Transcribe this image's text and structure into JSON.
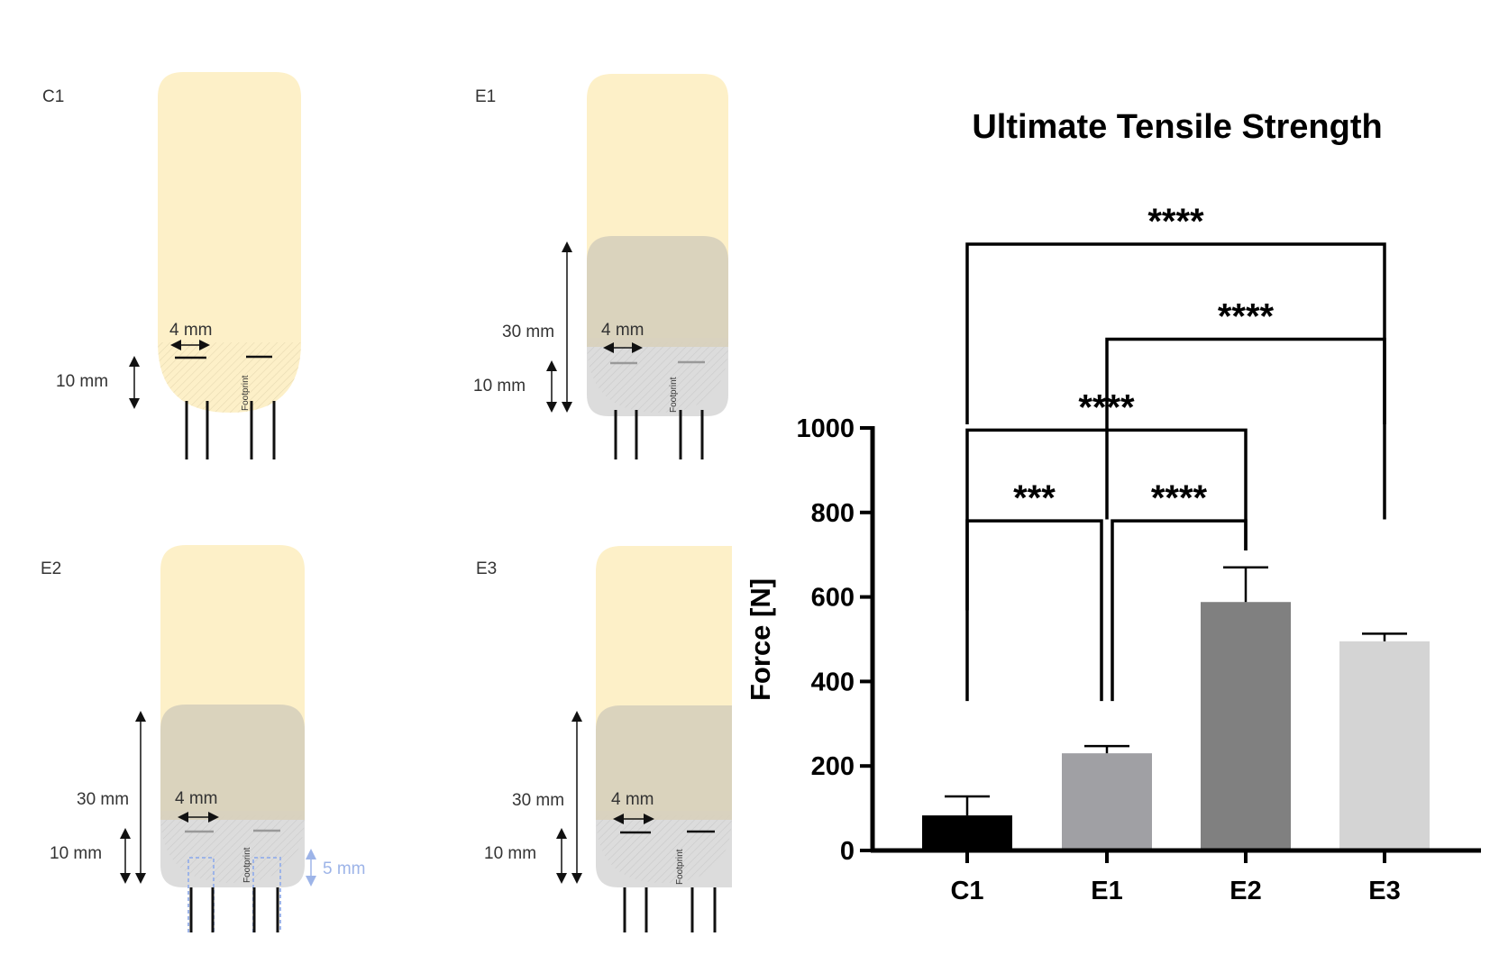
{
  "diagrams": [
    {
      "id": "c1",
      "label": "C1",
      "width_label": "4 mm",
      "dim1_label": "10 mm",
      "dim2_label": "",
      "footprint_label": "Footprint",
      "extra_label": ""
    },
    {
      "id": "e1",
      "label": "E1",
      "width_label": "4 mm",
      "dim1_label": "10 mm",
      "dim2_label": "30 mm",
      "footprint_label": "Footprint",
      "extra_label": ""
    },
    {
      "id": "e2",
      "label": "E2",
      "width_label": "4 mm",
      "dim1_label": "10 mm",
      "dim2_label": "30 mm",
      "footprint_label": "Footprint",
      "extra_label": "5 mm"
    },
    {
      "id": "e3",
      "label": "E3",
      "width_label": "4 mm",
      "dim1_label": "10 mm",
      "dim2_label": "30 mm",
      "footprint_label": "Footprint",
      "extra_label": ""
    }
  ],
  "colors": {
    "graft": "#fdf0c8",
    "sleeve": "#d8d1bd",
    "sleeve_bottom": "#dcdcdc",
    "suture": "#111111",
    "accent_blue": "#9db4e8"
  },
  "chart_data": {
    "type": "bar",
    "title": "Ultimate Tensile Strength",
    "xlabel": "",
    "ylabel": "Force [N]",
    "ylim": [
      0,
      1000
    ],
    "yticks": [
      0,
      200,
      400,
      600,
      800,
      1000
    ],
    "categories": [
      "C1",
      "E1",
      "E2",
      "E3"
    ],
    "values": [
      83,
      230,
      588,
      495
    ],
    "errors": [
      45,
      17,
      82,
      18
    ],
    "bar_colors": [
      "#000000",
      "#a0a0a4",
      "#808080",
      "#d4d4d4"
    ],
    "significance": [
      {
        "from": "C1",
        "to": "E1",
        "label": "***",
        "y": 780
      },
      {
        "from": "E1",
        "to": "E2",
        "label": "****",
        "y": 780
      },
      {
        "from": "C1",
        "to": "E2",
        "label": "****",
        "y": 995
      },
      {
        "from": "E1",
        "to": "E3",
        "label": "****",
        "y": 1210
      },
      {
        "from": "C1",
        "to": "E3",
        "label": "****",
        "y": 1435
      }
    ]
  }
}
